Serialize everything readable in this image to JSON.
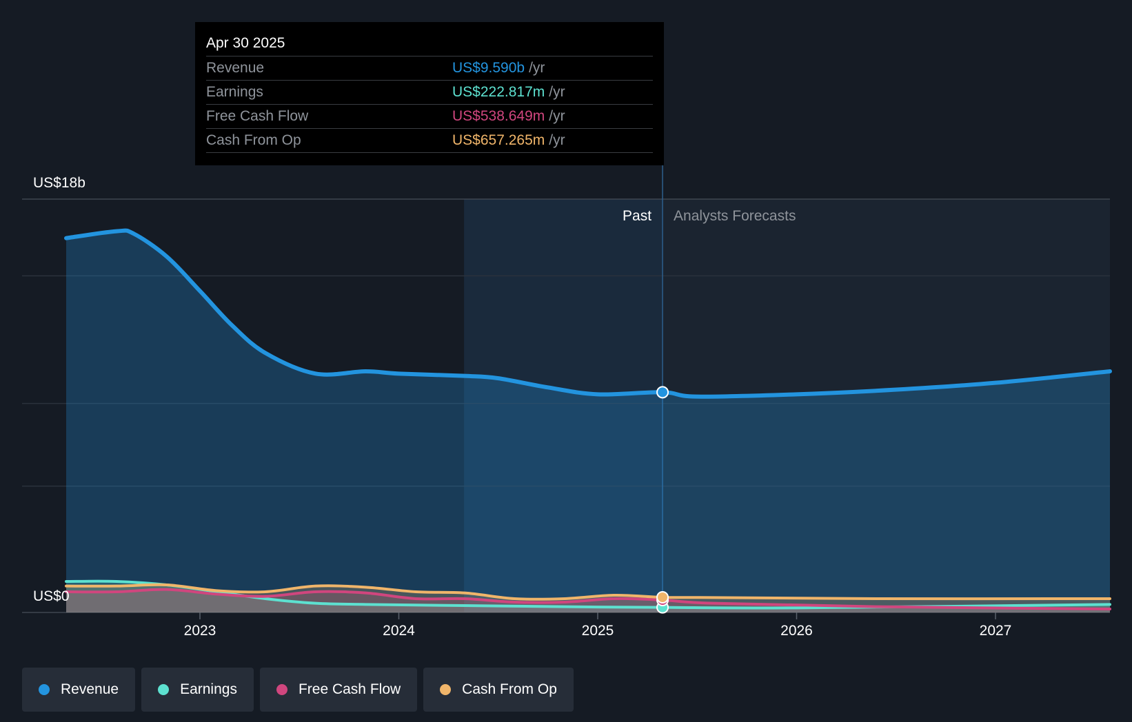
{
  "tooltip": {
    "date": "Apr 30 2025",
    "rows": [
      {
        "label": "Revenue",
        "value": "US$9.590b",
        "unit": "/yr",
        "color": "#2394df"
      },
      {
        "label": "Earnings",
        "value": "US$222.817m",
        "unit": "/yr",
        "color": "#5de1d0"
      },
      {
        "label": "Free Cash Flow",
        "value": "US$538.649m",
        "unit": "/yr",
        "color": "#d0467e"
      },
      {
        "label": "Cash From Op",
        "value": "US$657.265m",
        "unit": "/yr",
        "color": "#f0b56a"
      }
    ]
  },
  "labels": {
    "past": "Past",
    "forecast": "Analysts Forecasts"
  },
  "legend": [
    {
      "label": "Revenue",
      "color": "#2394df"
    },
    {
      "label": "Earnings",
      "color": "#5de1d0"
    },
    {
      "label": "Free Cash Flow",
      "color": "#d0467e"
    },
    {
      "label": "Cash From Op",
      "color": "#f0b56a"
    }
  ],
  "chart_data": {
    "type": "area",
    "y_unit": "US$ billions",
    "ylim": [
      0,
      18
    ],
    "y_tick_labels": [
      {
        "value": 18,
        "label": "US$18b"
      },
      {
        "value": 0,
        "label": "US$0"
      }
    ],
    "x_tick_labels": [
      "2023",
      "2024",
      "2025",
      "2026",
      "2027"
    ],
    "highlight_date": "2025-04-30",
    "past_shade_start": "2024-04-30",
    "grid": true,
    "series": [
      {
        "name": "Revenue",
        "color": "#2394df",
        "width": 6,
        "points": [
          [
            "2022-05-01",
            16.3
          ],
          [
            "2022-08-01",
            16.6
          ],
          [
            "2022-09-01",
            16.5
          ],
          [
            "2022-11-01",
            15.5
          ],
          [
            "2023-01-01",
            14.0
          ],
          [
            "2023-03-01",
            12.5
          ],
          [
            "2023-05-01",
            11.3
          ],
          [
            "2023-08-01",
            10.4
          ],
          [
            "2023-11-01",
            10.5
          ],
          [
            "2024-01-01",
            10.4
          ],
          [
            "2024-05-01",
            10.3
          ],
          [
            "2024-07-01",
            10.2
          ],
          [
            "2024-10-01",
            9.8
          ],
          [
            "2025-01-01",
            9.5
          ],
          [
            "2025-04-30",
            9.59
          ],
          [
            "2025-07-01",
            9.4
          ],
          [
            "2026-01-01",
            9.5
          ],
          [
            "2026-07-01",
            9.7
          ],
          [
            "2027-01-01",
            10.0
          ],
          [
            "2027-08-01",
            10.5
          ]
        ]
      },
      {
        "name": "Earnings",
        "color": "#5de1d0",
        "width": 4,
        "points": [
          [
            "2022-05-01",
            1.35
          ],
          [
            "2022-08-01",
            1.35
          ],
          [
            "2022-11-01",
            1.2
          ],
          [
            "2023-02-01",
            0.9
          ],
          [
            "2023-05-01",
            0.6
          ],
          [
            "2023-08-01",
            0.4
          ],
          [
            "2023-11-01",
            0.35
          ],
          [
            "2024-05-01",
            0.3
          ],
          [
            "2024-11-01",
            0.25
          ],
          [
            "2025-04-30",
            0.22
          ],
          [
            "2026-01-01",
            0.2
          ],
          [
            "2027-08-01",
            0.35
          ]
        ]
      },
      {
        "name": "Free Cash Flow",
        "color": "#d0467e",
        "width": 4,
        "points": [
          [
            "2022-05-01",
            0.9
          ],
          [
            "2022-08-01",
            0.9
          ],
          [
            "2022-11-01",
            1.0
          ],
          [
            "2023-02-01",
            0.8
          ],
          [
            "2023-05-01",
            0.7
          ],
          [
            "2023-08-01",
            0.9
          ],
          [
            "2023-11-01",
            0.85
          ],
          [
            "2024-02-01",
            0.6
          ],
          [
            "2024-05-01",
            0.6
          ],
          [
            "2024-08-01",
            0.45
          ],
          [
            "2024-11-01",
            0.45
          ],
          [
            "2025-02-01",
            0.6
          ],
          [
            "2025-04-30",
            0.54
          ],
          [
            "2025-08-01",
            0.4
          ],
          [
            "2026-06-01",
            0.25
          ],
          [
            "2027-08-01",
            0.15
          ]
        ]
      },
      {
        "name": "Cash From Op",
        "color": "#f0b56a",
        "width": 4,
        "points": [
          [
            "2022-05-01",
            1.15
          ],
          [
            "2022-08-01",
            1.15
          ],
          [
            "2022-11-01",
            1.2
          ],
          [
            "2023-02-01",
            0.95
          ],
          [
            "2023-05-01",
            0.9
          ],
          [
            "2023-08-01",
            1.15
          ],
          [
            "2023-11-01",
            1.1
          ],
          [
            "2024-02-01",
            0.9
          ],
          [
            "2024-05-01",
            0.85
          ],
          [
            "2024-08-01",
            0.6
          ],
          [
            "2024-11-01",
            0.6
          ],
          [
            "2025-02-01",
            0.75
          ],
          [
            "2025-04-30",
            0.66
          ],
          [
            "2025-08-01",
            0.65
          ],
          [
            "2026-06-01",
            0.6
          ],
          [
            "2027-08-01",
            0.6
          ]
        ]
      }
    ]
  }
}
